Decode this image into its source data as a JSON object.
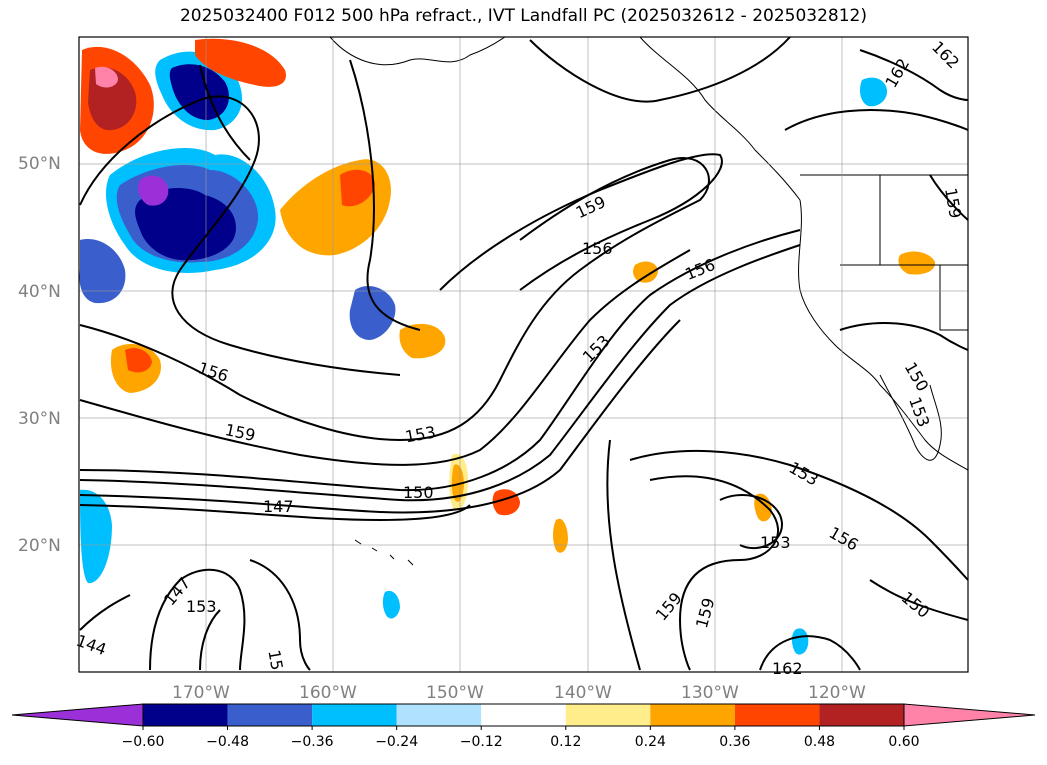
{
  "title": "2025032400 F012 500 hPa refract., IVT Landfall PC (2025032612 - 2025032812)",
  "lat_labels": [
    "50°N",
    "40°N",
    "30°N",
    "20°N"
  ],
  "lon_labels": [
    "170°W",
    "160°W",
    "150°W",
    "140°W",
    "130°W",
    "120°W"
  ],
  "contour_labels": [
    "159",
    "156",
    "156",
    "153",
    "156",
    "159",
    "153",
    "150",
    "147",
    "153",
    "156",
    "150",
    "153",
    "147",
    "153",
    "144",
    "159",
    "159",
    "162",
    "150",
    "162",
    "162",
    "159",
    "153",
    "15"
  ],
  "colorbar": {
    "colors": [
      "#9b30d9",
      "#00008b",
      "#3a5fcd",
      "#00bfff",
      "#b0e2ff",
      "#ffffff",
      "#ffec8b",
      "#ffa500",
      "#ff4500",
      "#b22222",
      "#ff83a9"
    ],
    "tick_labels": [
      "−0.60",
      "−0.48",
      "−0.36",
      "−0.24",
      "−0.12",
      "0.12",
      "0.24",
      "0.36",
      "0.48",
      "0.60"
    ]
  },
  "colors": {
    "contour": "#000000",
    "gridline": "#9a9a9a",
    "coast": "#000000",
    "axis_label": "#808080"
  }
}
